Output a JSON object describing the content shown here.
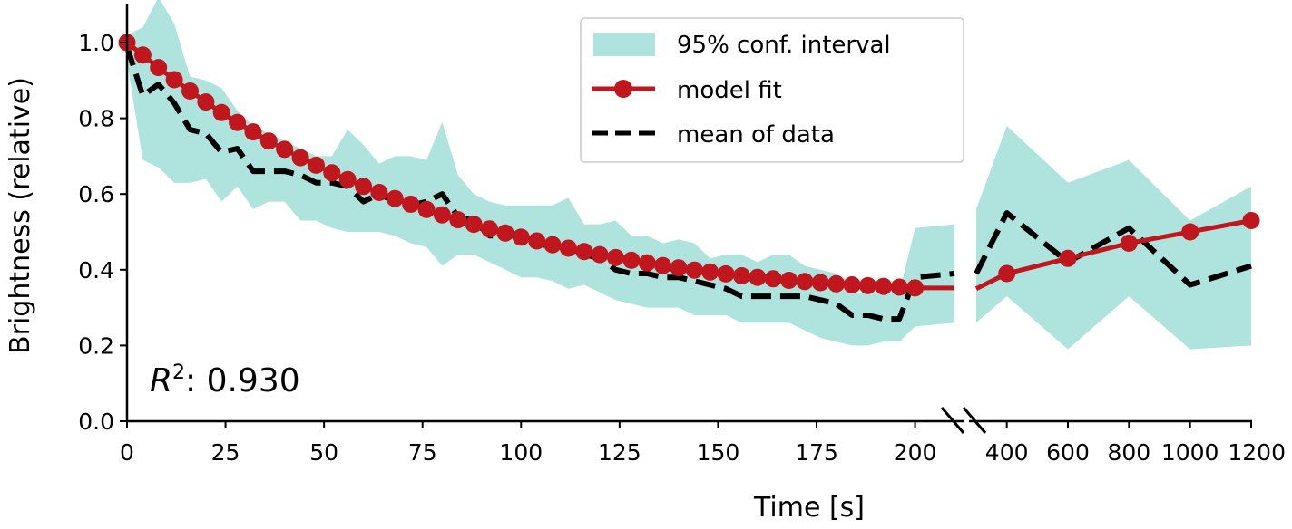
{
  "chart_data": {
    "type": "line",
    "xlabel": "Time [s]",
    "ylabel": "Brightness (relative)",
    "ylim": [
      0,
      1.1
    ],
    "grid": false,
    "legend_placement": "top-center",
    "broken_x_axis": true,
    "left_segment": {
      "xlim": [
        0,
        210
      ],
      "ticks": [
        "0",
        "25",
        "50",
        "75",
        "100",
        "125",
        "150",
        "175",
        "200"
      ],
      "tick_values": [
        0,
        25,
        50,
        75,
        100,
        125,
        150,
        175,
        200
      ]
    },
    "right_segment": {
      "xlim": [
        300,
        1200
      ],
      "ticks": [
        "400",
        "600",
        "800",
        "1000",
        "1200"
      ],
      "tick_values": [
        400,
        600,
        800,
        1000,
        1200
      ]
    },
    "yticks": [
      "0.0",
      "0.2",
      "0.4",
      "0.6",
      "0.8",
      "1.0"
    ],
    "ytick_values": [
      0,
      0.2,
      0.4,
      0.6,
      0.8,
      1.0
    ],
    "annotation_label": "R",
    "annotation_sup": "2",
    "annotation_value": ": 0.930",
    "colors": {
      "ci": "#aee3de",
      "model": "#c0161d",
      "mean": "#000000"
    },
    "series": [
      {
        "name": "95% conf. interval",
        "kind": "band",
        "left": {
          "x": [
            0,
            4,
            8,
            12,
            16,
            20,
            24,
            28,
            32,
            36,
            40,
            44,
            48,
            52,
            56,
            60,
            64,
            68,
            72,
            76,
            80,
            84,
            88,
            92,
            96,
            100,
            104,
            108,
            112,
            116,
            120,
            124,
            128,
            132,
            136,
            140,
            144,
            148,
            152,
            156,
            160,
            164,
            168,
            172,
            176,
            180,
            184,
            188,
            192,
            196,
            200,
            210
          ],
          "upper": [
            1.02,
            1.04,
            1.12,
            1.05,
            0.91,
            0.9,
            0.88,
            0.82,
            0.78,
            0.76,
            0.74,
            0.72,
            0.7,
            0.7,
            0.77,
            0.73,
            0.68,
            0.7,
            0.7,
            0.69,
            0.79,
            0.65,
            0.6,
            0.58,
            0.57,
            0.57,
            0.57,
            0.57,
            0.59,
            0.52,
            0.52,
            0.53,
            0.49,
            0.49,
            0.47,
            0.48,
            0.47,
            0.43,
            0.44,
            0.44,
            0.42,
            0.44,
            0.44,
            0.41,
            0.4,
            0.39,
            0.34,
            0.34,
            0.34,
            0.34,
            0.51,
            0.52
          ],
          "lower": [
            0.95,
            0.69,
            0.67,
            0.63,
            0.63,
            0.64,
            0.58,
            0.62,
            0.56,
            0.58,
            0.58,
            0.53,
            0.53,
            0.51,
            0.5,
            0.5,
            0.5,
            0.49,
            0.47,
            0.46,
            0.41,
            0.44,
            0.44,
            0.42,
            0.4,
            0.38,
            0.38,
            0.37,
            0.35,
            0.36,
            0.34,
            0.32,
            0.31,
            0.3,
            0.3,
            0.3,
            0.28,
            0.28,
            0.28,
            0.26,
            0.26,
            0.26,
            0.26,
            0.24,
            0.22,
            0.21,
            0.2,
            0.2,
            0.21,
            0.21,
            0.25,
            0.26
          ]
        },
        "right": {
          "x": [
            300,
            400,
            600,
            800,
            1000,
            1200
          ],
          "upper": [
            0.56,
            0.78,
            0.63,
            0.69,
            0.53,
            0.62
          ],
          "lower": [
            0.26,
            0.33,
            0.19,
            0.33,
            0.19,
            0.2
          ]
        }
      },
      {
        "name": "model fit",
        "kind": "line-markers",
        "left": {
          "x": [
            0,
            4,
            8,
            12,
            16,
            20,
            24,
            28,
            32,
            36,
            40,
            44,
            48,
            52,
            56,
            60,
            64,
            68,
            72,
            76,
            80,
            84,
            88,
            92,
            96,
            100,
            104,
            108,
            112,
            116,
            120,
            124,
            128,
            132,
            136,
            140,
            144,
            148,
            152,
            156,
            160,
            164,
            168,
            172,
            176,
            180,
            184,
            188,
            192,
            196,
            200,
            210
          ],
          "y": [
            1.0,
            0.967,
            0.934,
            0.902,
            0.872,
            0.843,
            0.815,
            0.789,
            0.764,
            0.74,
            0.718,
            0.696,
            0.676,
            0.656,
            0.638,
            0.62,
            0.604,
            0.588,
            0.573,
            0.559,
            0.545,
            0.532,
            0.52,
            0.508,
            0.497,
            0.486,
            0.476,
            0.466,
            0.457,
            0.448,
            0.44,
            0.432,
            0.425,
            0.418,
            0.411,
            0.405,
            0.399,
            0.394,
            0.389,
            0.384,
            0.38,
            0.376,
            0.372,
            0.369,
            0.366,
            0.363,
            0.36,
            0.358,
            0.356,
            0.354,
            0.352,
            0.352
          ],
          "marker_count": 51
        },
        "right": {
          "x": [
            300,
            400,
            600,
            800,
            1000,
            1200
          ],
          "y": [
            0.35,
            0.39,
            0.43,
            0.47,
            0.5,
            0.53
          ],
          "marker_count": 5
        }
      },
      {
        "name": "mean of data",
        "kind": "dashed-line",
        "left": {
          "x": [
            0,
            4,
            8,
            12,
            16,
            20,
            24,
            28,
            32,
            36,
            40,
            44,
            48,
            52,
            56,
            60,
            64,
            68,
            72,
            76,
            80,
            84,
            88,
            92,
            96,
            100,
            104,
            108,
            112,
            116,
            120,
            124,
            128,
            132,
            136,
            140,
            144,
            148,
            152,
            156,
            160,
            164,
            168,
            172,
            176,
            180,
            184,
            188,
            192,
            196,
            200,
            210
          ],
          "y": [
            0.99,
            0.86,
            0.89,
            0.84,
            0.77,
            0.76,
            0.71,
            0.72,
            0.66,
            0.66,
            0.66,
            0.65,
            0.63,
            0.63,
            0.62,
            0.58,
            0.6,
            0.58,
            0.57,
            0.58,
            0.6,
            0.54,
            0.53,
            0.49,
            0.49,
            0.49,
            0.47,
            0.46,
            0.46,
            0.44,
            0.43,
            0.4,
            0.39,
            0.39,
            0.38,
            0.38,
            0.37,
            0.36,
            0.35,
            0.33,
            0.33,
            0.33,
            0.33,
            0.33,
            0.32,
            0.31,
            0.28,
            0.28,
            0.27,
            0.27,
            0.38,
            0.39
          ]
        },
        "right": {
          "x": [
            300,
            400,
            600,
            800,
            1000,
            1200
          ],
          "y": [
            0.39,
            0.55,
            0.42,
            0.51,
            0.36,
            0.41
          ]
        }
      }
    ]
  }
}
